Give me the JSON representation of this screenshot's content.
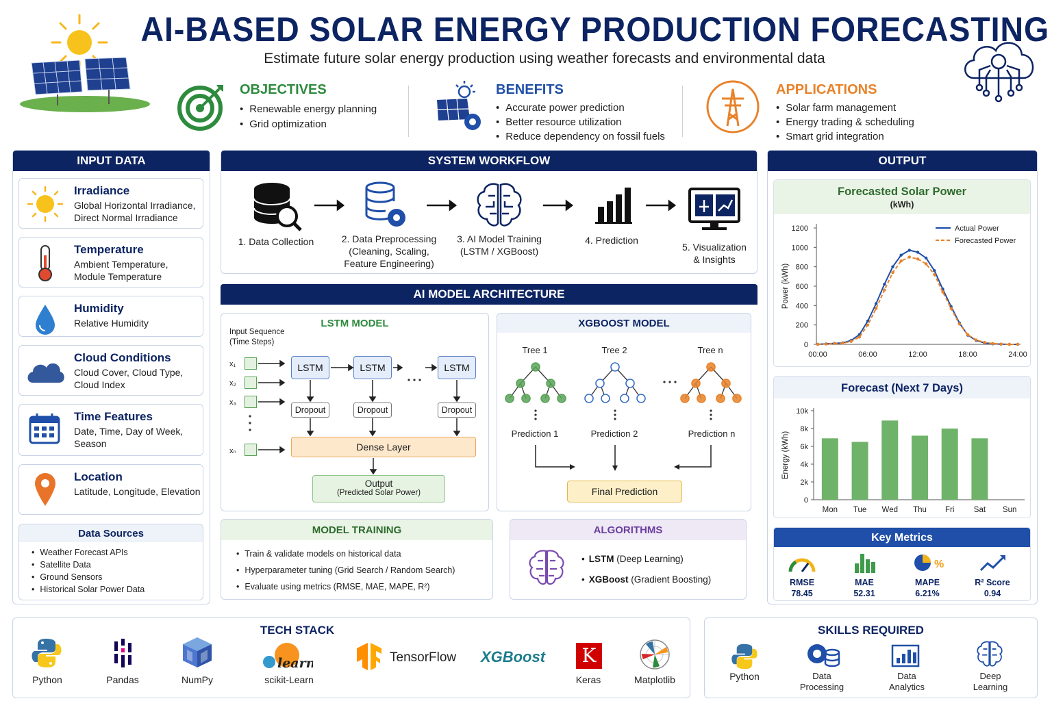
{
  "header": {
    "title": "AI-BASED SOLAR ENERGY PRODUCTION FORECASTING",
    "subtitle": "Estimate future solar energy production using weather forecasts and environmental data"
  },
  "objectives": {
    "title": "OBJECTIVES",
    "items": [
      "Renewable energy planning",
      "Grid optimization"
    ]
  },
  "benefits": {
    "title": "BENEFITS",
    "items": [
      "Accurate power prediction",
      "Better resource utilization",
      "Reduce dependency on fossil fuels"
    ]
  },
  "applications": {
    "title": "APPLICATIONS",
    "items": [
      "Solar farm management",
      "Energy trading & scheduling",
      "Smart grid integration"
    ]
  },
  "input": {
    "title": "INPUT DATA",
    "cards": [
      {
        "title": "Irradiance",
        "desc": "Global Horizontal Irradiance, Direct Normal Irradiance",
        "icon": "sun-icon"
      },
      {
        "title": "Temperature",
        "desc": "Ambient Temperature, Module Temperature",
        "icon": "thermometer-icon"
      },
      {
        "title": "Humidity",
        "desc": "Relative Humidity",
        "icon": "water-drop-icon"
      },
      {
        "title": "Cloud Conditions",
        "desc": "Cloud Cover, Cloud Type, Cloud Index",
        "icon": "cloud-icon"
      },
      {
        "title": "Time Features",
        "desc": "Date, Time, Day of Week, Season",
        "icon": "calendar-icon"
      },
      {
        "title": "Location",
        "desc": "Latitude, Longitude, Elevation",
        "icon": "location-pin-icon"
      }
    ],
    "sources": {
      "title": "Data Sources",
      "items": [
        "Weather Forecast APIs",
        "Satellite Data",
        "Ground Sensors",
        "Historical Solar Power Data"
      ]
    }
  },
  "workflow": {
    "title": "SYSTEM WORKFLOW",
    "steps": [
      {
        "label": "1. Data Collection",
        "icon": "database-search-icon"
      },
      {
        "label": "2. Data Preprocessing\n(Cleaning, Scaling,\nFeature Engineering)",
        "icon": "database-gear-icon"
      },
      {
        "label": "3. AI Model Training\n(LSTM / XGBoost)",
        "icon": "brain-circuit-icon"
      },
      {
        "label": "4. Prediction",
        "icon": "bar-chart-icon"
      },
      {
        "label": "5. Visualization\n& Insights",
        "icon": "monitor-dashboard-icon"
      }
    ]
  },
  "architecture": {
    "title": "AI MODEL ARCHITECTURE",
    "lstm": {
      "title": "LSTM MODEL",
      "input_label": "Input Sequence\n(Time Steps)",
      "inputs": [
        "x₁",
        "x₂",
        "x₃",
        "xₙ"
      ],
      "cell": "LSTM",
      "dropout": "Dropout",
      "dense": "Dense Layer",
      "output": "Output",
      "output_sub": "(Predicted Solar Power)"
    },
    "xgboost": {
      "title": "XGBOOST MODEL",
      "trees": [
        "Tree 1",
        "Tree 2",
        "Tree n"
      ],
      "predictions": [
        "Prediction 1",
        "Prediction 2",
        "Prediction n"
      ],
      "final": "Final Prediction",
      "tree_colors": [
        "#5aa35a",
        "#3a6fc7",
        "#e8822a"
      ]
    }
  },
  "training": {
    "title": "MODEL TRAINING",
    "items": [
      "Train & validate models on historical data",
      "Hyperparameter tuning (Grid Search / Random Search)",
      "Evaluate using metrics (RMSE, MAE, MAPE, R²)"
    ]
  },
  "algorithms": {
    "title": "ALGORITHMS",
    "items": [
      {
        "name": "LSTM",
        "detail": " (Deep Learning)"
      },
      {
        "name": "XGBoost",
        "detail": " (Gradient Boosting)"
      }
    ]
  },
  "output": {
    "title": "OUTPUT",
    "power_title": "Forecasted Solar Power",
    "power_unit": "(kWh)",
    "week_title": "Forecast (Next 7 Days)",
    "metrics_title": "Key Metrics",
    "metrics": [
      {
        "name": "RMSE",
        "value": "78.45",
        "icon": "gauge-icon"
      },
      {
        "name": "MAE",
        "value": "52.31",
        "icon": "bar-chart-icon"
      },
      {
        "name": "MAPE",
        "value": "6.21%",
        "icon": "pie-percent-icon"
      },
      {
        "name": "R² Score",
        "value": "0.94",
        "icon": "trend-line-icon"
      }
    ]
  },
  "chart_data": [
    {
      "type": "line",
      "title": "Forecasted Solar Power",
      "ylabel": "Power (kWh)",
      "xlabel": "",
      "x_ticks": [
        "00:00",
        "06:00",
        "12:00",
        "18:00",
        "24:00"
      ],
      "x": [
        0,
        1,
        2,
        3,
        4,
        5,
        6,
        7,
        8,
        9,
        10,
        11,
        12,
        13,
        14,
        15,
        16,
        17,
        18,
        19,
        20,
        21,
        22,
        23,
        24
      ],
      "ylim": [
        0,
        1200
      ],
      "y_ticks": [
        0,
        200,
        400,
        600,
        800,
        1000,
        1200
      ],
      "legend_position": "top-right",
      "series": [
        {
          "name": "Actual Power",
          "color": "#1f4fa8",
          "dash": false,
          "values": [
            0,
            5,
            10,
            15,
            40,
            100,
            240,
            420,
            620,
            800,
            920,
            970,
            950,
            890,
            760,
            570,
            390,
            220,
            95,
            40,
            15,
            5,
            2,
            0,
            0
          ]
        },
        {
          "name": "Forecasted Power",
          "color": "#e8822a",
          "dash": true,
          "values": [
            0,
            3,
            8,
            12,
            30,
            75,
            200,
            370,
            560,
            740,
            860,
            900,
            880,
            830,
            720,
            540,
            370,
            210,
            100,
            45,
            20,
            8,
            3,
            0,
            0
          ]
        }
      ]
    },
    {
      "type": "bar",
      "title": "Forecast (Next 7 Days)",
      "ylabel": "Energy (kWh)",
      "categories": [
        "Mon",
        "Tue",
        "Wed",
        "Thu",
        "Fri",
        "Sat",
        "Sun"
      ],
      "values": [
        6900,
        6500,
        8900,
        7200,
        8000,
        6900,
        0
      ],
      "y_ticks_labels": [
        "0",
        "2k",
        "4k",
        "6k",
        "8k",
        "10k"
      ],
      "y_ticks": [
        0,
        2000,
        4000,
        6000,
        8000,
        10000
      ],
      "ylim": [
        0,
        10000
      ],
      "color": "#6fb36a"
    }
  ],
  "tech_stack": {
    "title": "TECH STACK",
    "items": [
      {
        "label": "Python",
        "icon": "python-icon"
      },
      {
        "label": "Pandas",
        "icon": "pandas-icon"
      },
      {
        "label": "NumPy",
        "icon": "numpy-icon"
      },
      {
        "label": "scikit-Learn",
        "icon": "scikit-learn-icon",
        "logo_text": "learn"
      },
      {
        "label": "TensorFlow",
        "icon": "tensorflow-icon"
      },
      {
        "label": "XGBoost",
        "icon": "xgboost-logo"
      },
      {
        "label": "Keras",
        "icon": "keras-icon",
        "logo_text": "K"
      },
      {
        "label": "Matplotlib",
        "icon": "matplotlib-icon"
      }
    ]
  },
  "skills": {
    "title": "SKILLS REQUIRED",
    "items": [
      {
        "label": "Python",
        "icon": "python-icon"
      },
      {
        "label": "Data\nProcessing",
        "icon": "data-processing-icon"
      },
      {
        "label": "Data\nAnalytics",
        "icon": "analytics-icon"
      },
      {
        "label": "Deep\nLearning",
        "icon": "brain-icon"
      }
    ]
  }
}
